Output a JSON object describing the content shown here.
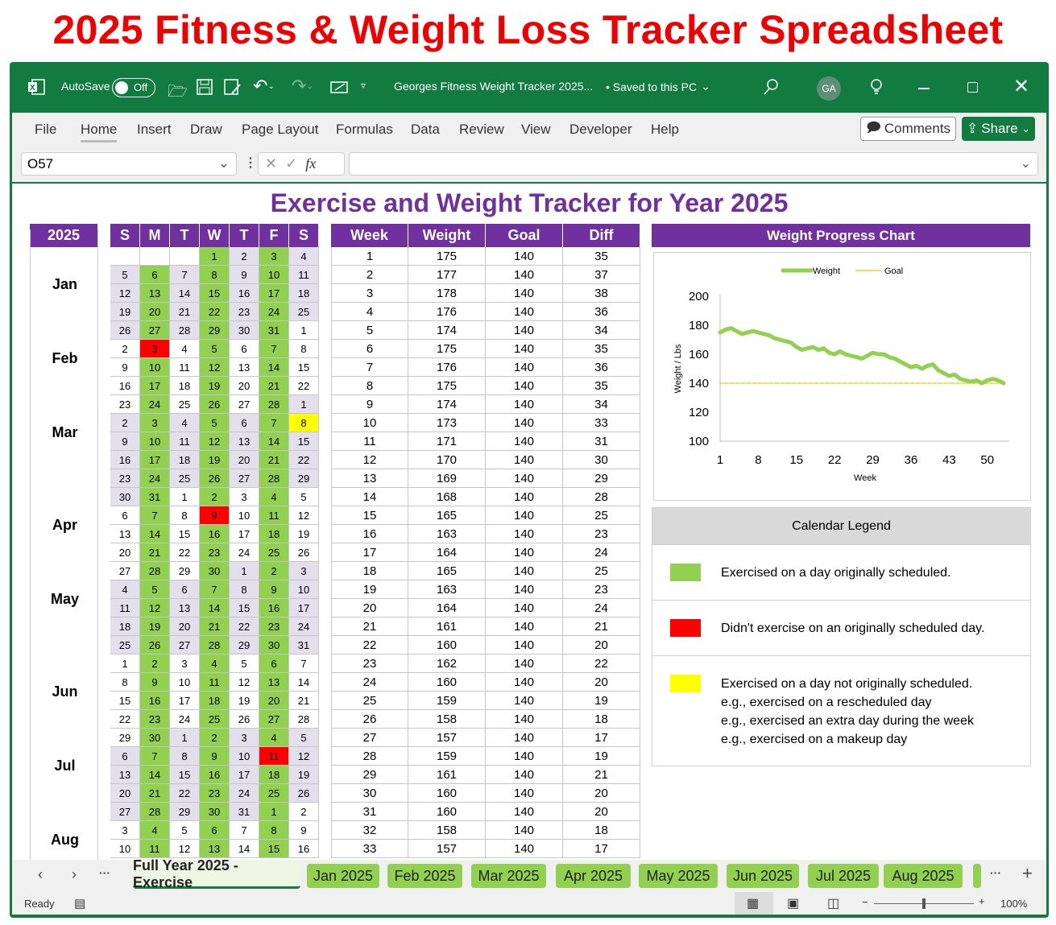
{
  "banner": "2025 Fitness & Weight Loss Tracker Spreadsheet",
  "titlebar": {
    "autosave": "AutoSave",
    "toggle": "Off",
    "doc_title": "Georges Fitness Weight Tracker 2025...",
    "saved": "• Saved to this PC",
    "avatar": "GA"
  },
  "ribbon": {
    "tabs": [
      "File",
      "Home",
      "Insert",
      "Draw",
      "Page Layout",
      "Formulas",
      "Data",
      "Review",
      "View",
      "Developer",
      "Help"
    ],
    "active": "Home",
    "comments": "Comments",
    "share": "Share"
  },
  "formula_bar": {
    "name_box": "O57",
    "fx": "fx",
    "formula": ""
  },
  "sheet": {
    "title": "Exercise and Weight Tracker for Year 2025",
    "year_header": "2025",
    "months": [
      "Jan",
      "Feb",
      "Mar",
      "Apr",
      "May",
      "Jun",
      "Jul",
      "Aug"
    ],
    "day_headers": [
      "S",
      "M",
      "T",
      "W",
      "T",
      "F",
      "S"
    ],
    "colors": {
      "exercised": "#92d050",
      "missed": "#ff0000",
      "extra": "#ffff00",
      "odd_month": "#e4dfec",
      "header": "#7030a0"
    },
    "scheduled_weekdays": [
      "M",
      "W",
      "F"
    ],
    "missed_days": [
      "2-3",
      "4-9",
      "7-11"
    ],
    "extra_days": [
      "3-8"
    ],
    "calendar_rows": [
      [
        null,
        null,
        null,
        1,
        2,
        3,
        4
      ],
      [
        5,
        6,
        7,
        8,
        9,
        10,
        11
      ],
      [
        12,
        13,
        14,
        15,
        16,
        17,
        18
      ],
      [
        19,
        20,
        21,
        22,
        23,
        24,
        25
      ],
      [
        26,
        27,
        28,
        29,
        30,
        31,
        1
      ],
      [
        2,
        3,
        4,
        5,
        6,
        7,
        8
      ],
      [
        9,
        10,
        11,
        12,
        13,
        14,
        15
      ],
      [
        16,
        17,
        18,
        19,
        20,
        21,
        22
      ],
      [
        23,
        24,
        25,
        26,
        27,
        28,
        1
      ],
      [
        2,
        3,
        4,
        5,
        6,
        7,
        8
      ],
      [
        9,
        10,
        11,
        12,
        13,
        14,
        15
      ],
      [
        16,
        17,
        18,
        19,
        20,
        21,
        22
      ],
      [
        23,
        24,
        25,
        26,
        27,
        28,
        29
      ],
      [
        30,
        31,
        1,
        2,
        3,
        4,
        5
      ],
      [
        6,
        7,
        8,
        9,
        10,
        11,
        12
      ],
      [
        13,
        14,
        15,
        16,
        17,
        18,
        19
      ],
      [
        20,
        21,
        22,
        23,
        24,
        25,
        26
      ],
      [
        27,
        28,
        29,
        30,
        1,
        2,
        3
      ],
      [
        4,
        5,
        6,
        7,
        8,
        9,
        10
      ],
      [
        11,
        12,
        13,
        14,
        15,
        16,
        17
      ],
      [
        18,
        19,
        20,
        21,
        22,
        23,
        24
      ],
      [
        25,
        26,
        27,
        28,
        29,
        30,
        31
      ],
      [
        1,
        2,
        3,
        4,
        5,
        6,
        7
      ],
      [
        8,
        9,
        10,
        11,
        12,
        13,
        14
      ],
      [
        15,
        16,
        17,
        18,
        19,
        20,
        21
      ],
      [
        22,
        23,
        24,
        25,
        26,
        27,
        28
      ],
      [
        29,
        30,
        1,
        2,
        3,
        4,
        5
      ],
      [
        6,
        7,
        8,
        9,
        10,
        11,
        12
      ],
      [
        13,
        14,
        15,
        16,
        17,
        18,
        19
      ],
      [
        20,
        21,
        22,
        23,
        24,
        25,
        26
      ],
      [
        27,
        28,
        29,
        30,
        31,
        1,
        2
      ],
      [
        3,
        4,
        5,
        6,
        7,
        8,
        9
      ],
      [
        10,
        11,
        12,
        13,
        14,
        15,
        16
      ]
    ],
    "week_table": {
      "headers": [
        "Week",
        "Weight",
        "Goal",
        "Diff"
      ],
      "rows": [
        [
          1,
          175,
          140,
          35
        ],
        [
          2,
          177,
          140,
          37
        ],
        [
          3,
          178,
          140,
          38
        ],
        [
          4,
          176,
          140,
          36
        ],
        [
          5,
          174,
          140,
          34
        ],
        [
          6,
          175,
          140,
          35
        ],
        [
          7,
          176,
          140,
          36
        ],
        [
          8,
          175,
          140,
          35
        ],
        [
          9,
          174,
          140,
          34
        ],
        [
          10,
          173,
          140,
          33
        ],
        [
          11,
          171,
          140,
          31
        ],
        [
          12,
          170,
          140,
          30
        ],
        [
          13,
          169,
          140,
          29
        ],
        [
          14,
          168,
          140,
          28
        ],
        [
          15,
          165,
          140,
          25
        ],
        [
          16,
          163,
          140,
          23
        ],
        [
          17,
          164,
          140,
          24
        ],
        [
          18,
          165,
          140,
          25
        ],
        [
          19,
          163,
          140,
          23
        ],
        [
          20,
          164,
          140,
          24
        ],
        [
          21,
          161,
          140,
          21
        ],
        [
          22,
          160,
          140,
          20
        ],
        [
          23,
          162,
          140,
          22
        ],
        [
          24,
          160,
          140,
          20
        ],
        [
          25,
          159,
          140,
          19
        ],
        [
          26,
          158,
          140,
          18
        ],
        [
          27,
          157,
          140,
          17
        ],
        [
          28,
          159,
          140,
          19
        ],
        [
          29,
          161,
          140,
          21
        ],
        [
          30,
          160,
          140,
          20
        ],
        [
          31,
          160,
          140,
          20
        ],
        [
          32,
          158,
          140,
          18
        ],
        [
          33,
          157,
          140,
          17
        ]
      ]
    },
    "chart_header": "Weight Progress Chart",
    "legend": {
      "title": "Calendar Legend",
      "items": [
        {
          "color": "#92d050",
          "lines": [
            "Exercised on a day originally scheduled."
          ]
        },
        {
          "color": "#ff0000",
          "lines": [
            "Didn't exercise on an originally scheduled day."
          ]
        },
        {
          "color": "#ffff00",
          "lines": [
            "Exercised on a day not originally scheduled.",
            "e.g., exercised on a rescheduled day",
            "e.g., exercised an extra day during the week",
            "e.g., exercised on a makeup day"
          ]
        }
      ]
    }
  },
  "chart_data": {
    "type": "line",
    "title": "",
    "xlabel": "Week",
    "ylabel": "Weight / Lbs",
    "ylim": [
      100,
      200
    ],
    "yticks": [
      100,
      120,
      140,
      160,
      180,
      200
    ],
    "xticks": [
      1,
      8,
      15,
      22,
      29,
      36,
      43,
      50
    ],
    "legend_position": "top",
    "grid": false,
    "x": [
      1,
      2,
      3,
      4,
      5,
      6,
      7,
      8,
      9,
      10,
      11,
      12,
      13,
      14,
      15,
      16,
      17,
      18,
      19,
      20,
      21,
      22,
      23,
      24,
      25,
      26,
      27,
      28,
      29,
      30,
      31,
      32,
      33,
      34,
      35,
      36,
      37,
      38,
      39,
      40,
      41,
      42,
      43,
      44,
      45,
      46,
      47,
      48,
      49,
      50,
      51,
      52,
      53
    ],
    "series": [
      {
        "name": "Weight",
        "color": "#92d050",
        "values": [
          175,
          177,
          178,
          176,
          174,
          175,
          176,
          175,
          174,
          173,
          171,
          170,
          169,
          168,
          165,
          163,
          164,
          165,
          163,
          164,
          161,
          160,
          162,
          160,
          159,
          158,
          157,
          159,
          161,
          160,
          160,
          158,
          157,
          155,
          153,
          151,
          152,
          150,
          152,
          153,
          149,
          147,
          145,
          146,
          143,
          142,
          141,
          142,
          140,
          142,
          143,
          142,
          140
        ]
      },
      {
        "name": "Goal",
        "color": "#ffc000",
        "values": [
          140,
          140,
          140,
          140,
          140,
          140,
          140,
          140,
          140,
          140,
          140,
          140,
          140,
          140,
          140,
          140,
          140,
          140,
          140,
          140,
          140,
          140,
          140,
          140,
          140,
          140,
          140,
          140,
          140,
          140,
          140,
          140,
          140,
          140,
          140,
          140,
          140,
          140,
          140,
          140,
          140,
          140,
          140,
          140,
          140,
          140,
          140,
          140,
          140,
          140,
          140,
          140,
          140
        ]
      }
    ]
  },
  "sheet_tabs": {
    "tabs": [
      "Full Year 2025 - Exercise",
      "Jan 2025",
      "Feb 2025",
      "Mar 2025",
      "Apr 2025",
      "May 2025",
      "Jun 2025",
      "Jul 2025",
      "Aug 2025"
    ],
    "active": 0
  },
  "status": {
    "ready": "Ready",
    "zoom": "100%"
  }
}
